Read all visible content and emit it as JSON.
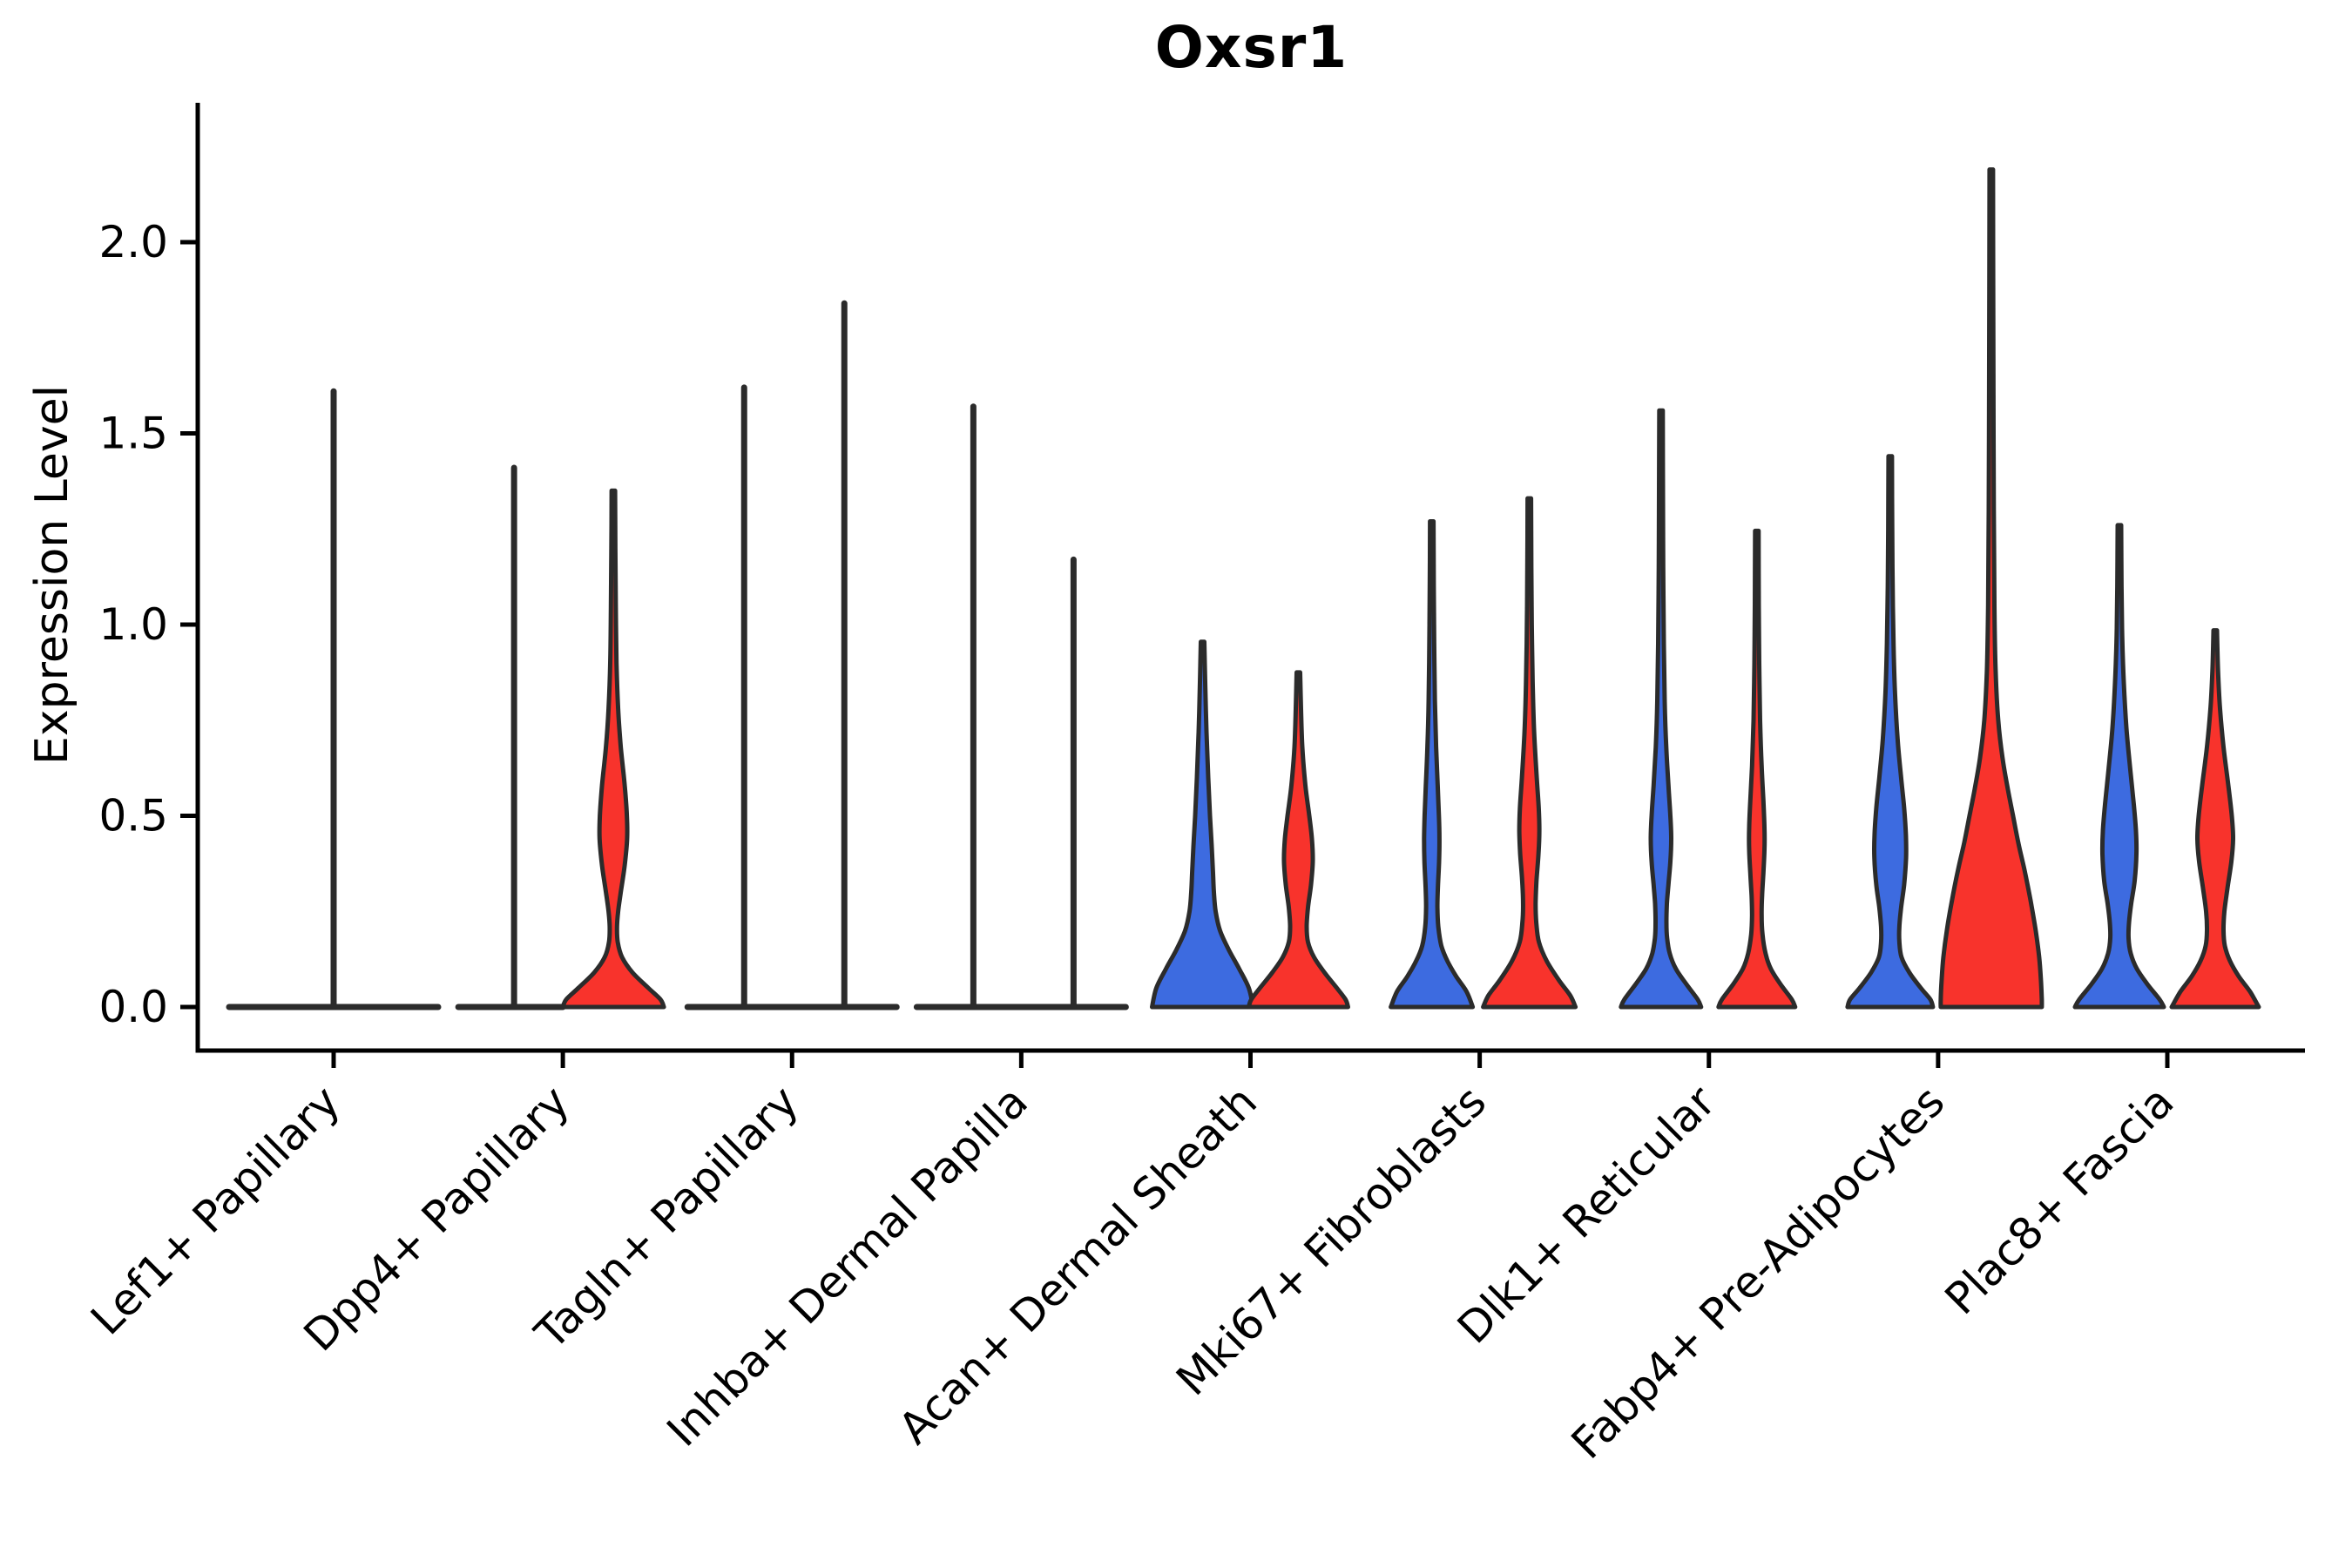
{
  "chart_data": {
    "type": "violin",
    "title": "Oxsr1",
    "ylabel": "Expression Level",
    "xlabel": "",
    "ylim": [
      -0.115,
      2.33
    ],
    "yticks": [
      0.0,
      0.5,
      1.0,
      1.5,
      2.0
    ],
    "ytick_labels": [
      "0.0",
      "0.5",
      "1.0",
      "1.5",
      "2.0"
    ],
    "grid": false,
    "legend": "none",
    "colors": {
      "split_left": "#3D6BE0",
      "split_right": "#F8332C",
      "outline": "#2B2B2B",
      "axis": "#000000",
      "background": "#FFFFFF"
    },
    "categories": [
      "Lef1+ Papillary",
      "Dpp4+ Papillary",
      "Tagln+ Papillary",
      "Inhba+ Dermal Papilla",
      "Acan+ Dermal Sheath",
      "Mki67+ Fibroblasts",
      "Dlk1+ Reticular",
      "Fabp4+ Pre-Adipocytes",
      "Plac8+ Fascia"
    ],
    "groups": [
      {
        "category": "Lef1+ Papillary",
        "baseline_span": [
          -120,
          120
        ],
        "spikes": [
          {
            "side": "center",
            "offset": 0,
            "max_expression": 1.61
          }
        ],
        "violins": []
      },
      {
        "category": "Dpp4+ Papillary",
        "baseline_span": [
          -120,
          0
        ],
        "spikes": [
          {
            "side": "left",
            "offset": -56,
            "max_expression": 1.41
          }
        ],
        "violins": [
          {
            "side": "right",
            "offset": 58,
            "max_expression": 1.35,
            "profile": [
              [
                1.35,
                2
              ],
              [
                1.2,
                2.3
              ],
              [
                1.05,
                2.8
              ],
              [
                0.9,
                3.6
              ],
              [
                0.78,
                5.5
              ],
              [
                0.68,
                8.5
              ],
              [
                0.58,
                13
              ],
              [
                0.5,
                15.5
              ],
              [
                0.44,
                15.8
              ],
              [
                0.37,
                13
              ],
              [
                0.3,
                8.5
              ],
              [
                0.25,
                5.5
              ],
              [
                0.21,
                4.2
              ],
              [
                0.17,
                5
              ],
              [
                0.13,
                10
              ],
              [
                0.09,
                22
              ],
              [
                0.05,
                40
              ],
              [
                0.02,
                54
              ],
              [
                0.0,
                58
              ]
            ]
          }
        ]
      },
      {
        "category": "Tagln+ Papillary",
        "baseline_span": [
          -120,
          120
        ],
        "spikes": [
          {
            "side": "left",
            "offset": -55,
            "max_expression": 1.62
          },
          {
            "side": "right",
            "offset": 60,
            "max_expression": 1.84
          }
        ],
        "violins": []
      },
      {
        "category": "Inhba+ Dermal Papilla",
        "baseline_span": [
          -120,
          120
        ],
        "spikes": [
          {
            "side": "left",
            "offset": -55,
            "max_expression": 1.57
          },
          {
            "side": "right",
            "offset": 60,
            "max_expression": 1.17
          }
        ],
        "violins": []
      },
      {
        "category": "Acan+ Dermal Sheath",
        "baseline_span": null,
        "spikes": [],
        "violins": [
          {
            "side": "left",
            "offset": -55,
            "max_expression": 0.955,
            "profile": [
              [
                0.955,
                2
              ],
              [
                0.85,
                3
              ],
              [
                0.72,
                4.5
              ],
              [
                0.6,
                6.5
              ],
              [
                0.5,
                8.5
              ],
              [
                0.42,
                10.5
              ],
              [
                0.35,
                12
              ],
              [
                0.3,
                13
              ],
              [
                0.25,
                15
              ],
              [
                0.2,
                20
              ],
              [
                0.15,
                30
              ],
              [
                0.1,
                42
              ],
              [
                0.05,
                53
              ],
              [
                0.0,
                58
              ]
            ]
          },
          {
            "side": "right",
            "offset": 55,
            "max_expression": 0.875,
            "profile": [
              [
                0.875,
                2
              ],
              [
                0.78,
                3
              ],
              [
                0.68,
                4.5
              ],
              [
                0.58,
                8
              ],
              [
                0.5,
                12.5
              ],
              [
                0.44,
                15.5
              ],
              [
                0.38,
                16.5
              ],
              [
                0.32,
                14.5
              ],
              [
                0.26,
                11
              ],
              [
                0.21,
                9.5
              ],
              [
                0.17,
                11
              ],
              [
                0.13,
                18
              ],
              [
                0.09,
                30
              ],
              [
                0.05,
                44
              ],
              [
                0.02,
                54
              ],
              [
                0.0,
                57
              ]
            ]
          }
        ]
      },
      {
        "category": "Mki67+ Fibroblasts",
        "baseline_span": null,
        "spikes": [],
        "violins": [
          {
            "side": "left",
            "offset": -55,
            "max_expression": 1.27,
            "profile": [
              [
                1.27,
                2
              ],
              [
                1.1,
                2.3
              ],
              [
                0.95,
                2.8
              ],
              [
                0.8,
                3.6
              ],
              [
                0.68,
                5
              ],
              [
                0.58,
                6.8
              ],
              [
                0.5,
                8.2
              ],
              [
                0.44,
                8.8
              ],
              [
                0.38,
                8.4
              ],
              [
                0.31,
                7
              ],
              [
                0.26,
                6.5
              ],
              [
                0.21,
                7.5
              ],
              [
                0.16,
                11
              ],
              [
                0.12,
                18
              ],
              [
                0.08,
                28
              ],
              [
                0.04,
                40
              ],
              [
                0.0,
                47
              ]
            ]
          },
          {
            "side": "right",
            "offset": 57,
            "max_expression": 1.33,
            "profile": [
              [
                1.33,
                2
              ],
              [
                1.15,
                2.3
              ],
              [
                1.0,
                2.8
              ],
              [
                0.85,
                3.8
              ],
              [
                0.72,
                5.5
              ],
              [
                0.6,
                8.5
              ],
              [
                0.52,
                10.8
              ],
              [
                0.46,
                11.5
              ],
              [
                0.4,
                10.5
              ],
              [
                0.33,
                8.2
              ],
              [
                0.27,
                7.2
              ],
              [
                0.22,
                8
              ],
              [
                0.17,
                11
              ],
              [
                0.12,
                20
              ],
              [
                0.07,
                34
              ],
              [
                0.03,
                47
              ],
              [
                0.0,
                53
              ]
            ]
          }
        ]
      },
      {
        "category": "Dlk1+ Reticular",
        "baseline_span": null,
        "spikes": [],
        "violins": [
          {
            "side": "left",
            "offset": -55,
            "max_expression": 1.56,
            "profile": [
              [
                1.56,
                2
              ],
              [
                1.35,
                2.2
              ],
              [
                1.15,
                2.6
              ],
              [
                0.95,
                3.2
              ],
              [
                0.8,
                4.2
              ],
              [
                0.68,
                6
              ],
              [
                0.58,
                8.5
              ],
              [
                0.5,
                10.8
              ],
              [
                0.44,
                11.8
              ],
              [
                0.38,
                10.8
              ],
              [
                0.32,
                8.5
              ],
              [
                0.27,
                6.8
              ],
              [
                0.22,
                6.2
              ],
              [
                0.18,
                7
              ],
              [
                0.14,
                10
              ],
              [
                0.1,
                17
              ],
              [
                0.06,
                29
              ],
              [
                0.02,
                42
              ],
              [
                0.0,
                46
              ]
            ]
          },
          {
            "side": "right",
            "offset": 55,
            "max_expression": 1.245,
            "profile": [
              [
                1.245,
                2
              ],
              [
                1.05,
                2.3
              ],
              [
                0.9,
                2.8
              ],
              [
                0.75,
                3.8
              ],
              [
                0.63,
                5.5
              ],
              [
                0.54,
                7.5
              ],
              [
                0.47,
                8.8
              ],
              [
                0.41,
                8.8
              ],
              [
                0.35,
                7.5
              ],
              [
                0.29,
                6
              ],
              [
                0.24,
                5.5
              ],
              [
                0.19,
                6.5
              ],
              [
                0.14,
                10
              ],
              [
                0.1,
                16
              ],
              [
                0.06,
                27
              ],
              [
                0.02,
                40
              ],
              [
                0.0,
                44
              ]
            ]
          }
        ]
      },
      {
        "category": "Fabp4+ Pre-Adipocytes",
        "baseline_span": null,
        "spikes": [],
        "violins": [
          {
            "side": "left",
            "offset": -55,
            "max_expression": 1.44,
            "profile": [
              [
                1.44,
                2
              ],
              [
                1.25,
                2.3
              ],
              [
                1.1,
                2.8
              ],
              [
                0.95,
                3.8
              ],
              [
                0.82,
                5.5
              ],
              [
                0.7,
                8.5
              ],
              [
                0.6,
                12.5
              ],
              [
                0.52,
                16
              ],
              [
                0.45,
                18
              ],
              [
                0.39,
                18.2
              ],
              [
                0.32,
                16
              ],
              [
                0.26,
                12.5
              ],
              [
                0.21,
                10.5
              ],
              [
                0.17,
                10.5
              ],
              [
                0.13,
                13
              ],
              [
                0.09,
                22
              ],
              [
                0.05,
                35
              ],
              [
                0.02,
                46
              ],
              [
                0.0,
                49
              ]
            ]
          },
          {
            "side": "right",
            "offset": 61,
            "max_expression": 2.19,
            "profile": [
              [
                2.19,
                2
              ],
              [
                1.9,
                2.2
              ],
              [
                1.6,
                2.5
              ],
              [
                1.3,
                2.9
              ],
              [
                1.05,
                3.6
              ],
              [
                0.88,
                5
              ],
              [
                0.75,
                8
              ],
              [
                0.65,
                13
              ],
              [
                0.57,
                19
              ],
              [
                0.5,
                25
              ],
              [
                0.43,
                31
              ],
              [
                0.36,
                38
              ],
              [
                0.28,
                45
              ],
              [
                0.2,
                51
              ],
              [
                0.13,
                55
              ],
              [
                0.07,
                57
              ],
              [
                0.02,
                58
              ],
              [
                0.0,
                58
              ]
            ]
          }
        ]
      },
      {
        "category": "Plac8+ Fascia",
        "baseline_span": null,
        "spikes": [],
        "violins": [
          {
            "side": "left",
            "offset": -55,
            "max_expression": 1.26,
            "profile": [
              [
                1.26,
                2
              ],
              [
                1.1,
                2.4
              ],
              [
                0.97,
                3.2
              ],
              [
                0.85,
                5
              ],
              [
                0.73,
                8
              ],
              [
                0.62,
                12.5
              ],
              [
                0.53,
                16.5
              ],
              [
                0.46,
                19
              ],
              [
                0.4,
                19.5
              ],
              [
                0.33,
                17.5
              ],
              [
                0.27,
                13.5
              ],
              [
                0.22,
                11
              ],
              [
                0.18,
                10.5
              ],
              [
                0.14,
                13
              ],
              [
                0.1,
                20
              ],
              [
                0.06,
                32
              ],
              [
                0.02,
                46
              ],
              [
                0.0,
                51
              ]
            ]
          },
          {
            "side": "right",
            "offset": 55,
            "max_expression": 0.985,
            "profile": [
              [
                0.985,
                2
              ],
              [
                0.88,
                3.2
              ],
              [
                0.78,
                5.5
              ],
              [
                0.68,
                9.5
              ],
              [
                0.58,
                15
              ],
              [
                0.5,
                19
              ],
              [
                0.44,
                20.5
              ],
              [
                0.38,
                18.5
              ],
              [
                0.31,
                14
              ],
              [
                0.25,
                10.5
              ],
              [
                0.2,
                9.5
              ],
              [
                0.16,
                11
              ],
              [
                0.12,
                17
              ],
              [
                0.08,
                27
              ],
              [
                0.04,
                40
              ],
              [
                0.0,
                50
              ]
            ]
          }
        ]
      }
    ]
  }
}
